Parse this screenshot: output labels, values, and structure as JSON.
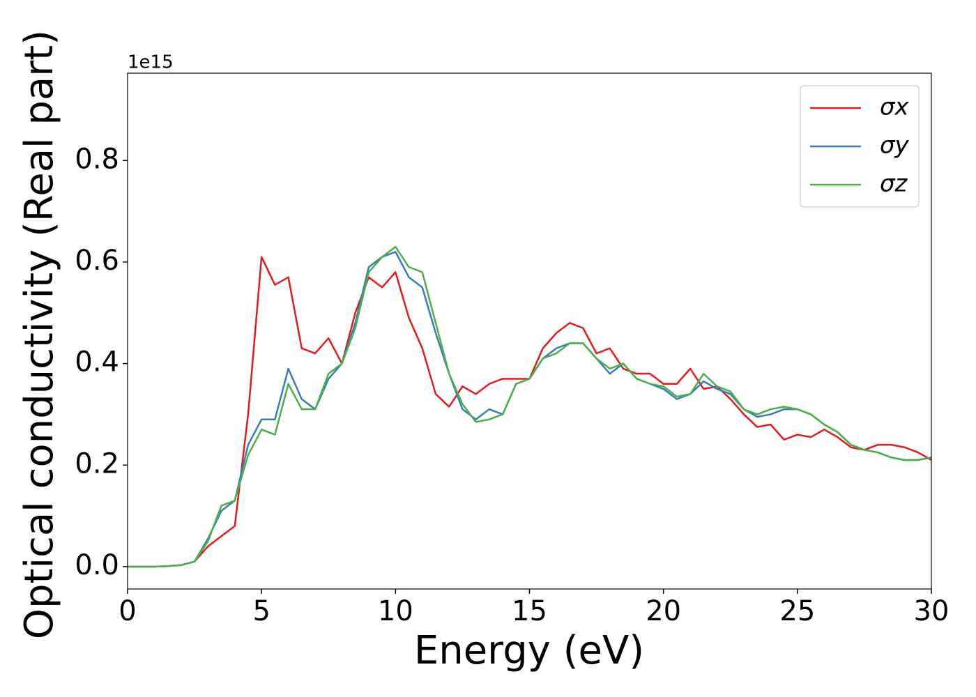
{
  "chart_data": {
    "type": "line",
    "xlabel": "Energy (eV)",
    "ylabel": "Optical conductivity (Real part)",
    "offset_label": "1e15",
    "x": [
      0,
      0.5,
      1,
      1.5,
      2,
      2.5,
      3,
      3.5,
      4,
      4.5,
      5,
      5.5,
      6,
      6.5,
      7,
      7.5,
      8,
      8.5,
      9,
      9.5,
      10,
      10.5,
      11,
      11.5,
      12,
      12.5,
      13,
      13.5,
      14,
      14.5,
      15,
      15.5,
      16,
      16.5,
      17,
      17.5,
      18,
      18.5,
      19,
      19.5,
      20,
      20.5,
      21,
      21.5,
      22,
      22.5,
      23,
      23.5,
      24,
      24.5,
      25,
      25.5,
      26,
      26.5,
      27,
      27.5,
      28,
      28.5,
      29,
      29.5,
      30
    ],
    "series": [
      {
        "name": "σx",
        "color": "#e41a1c",
        "values": [
          0,
          0,
          0,
          0.001,
          0.003,
          0.01,
          0.04,
          0.06,
          0.08,
          0.3,
          0.61,
          0.555,
          0.57,
          0.43,
          0.42,
          0.45,
          0.4,
          0.5,
          0.57,
          0.55,
          0.58,
          0.49,
          0.43,
          0.34,
          0.315,
          0.355,
          0.34,
          0.36,
          0.37,
          0.37,
          0.37,
          0.43,
          0.46,
          0.48,
          0.47,
          0.42,
          0.43,
          0.39,
          0.38,
          0.38,
          0.36,
          0.36,
          0.39,
          0.35,
          0.355,
          0.33,
          0.3,
          0.275,
          0.28,
          0.25,
          0.26,
          0.255,
          0.27,
          0.255,
          0.235,
          0.23,
          0.24,
          0.24,
          0.235,
          0.225,
          0.21
        ]
      },
      {
        "name": "σy",
        "color": "#377eb8",
        "values": [
          0,
          0,
          0,
          0.001,
          0.003,
          0.01,
          0.055,
          0.11,
          0.13,
          0.24,
          0.29,
          0.29,
          0.39,
          0.33,
          0.31,
          0.37,
          0.4,
          0.48,
          0.59,
          0.61,
          0.62,
          0.57,
          0.55,
          0.46,
          0.38,
          0.31,
          0.29,
          0.31,
          0.3,
          0.36,
          0.37,
          0.41,
          0.43,
          0.44,
          0.44,
          0.41,
          0.38,
          0.4,
          0.37,
          0.36,
          0.35,
          0.33,
          0.34,
          0.365,
          0.35,
          0.34,
          0.31,
          0.295,
          0.3,
          0.31,
          0.31,
          0.3,
          0.28,
          0.265,
          0.24,
          0.23,
          0.225,
          0.215,
          0.21,
          0.21,
          0.215
        ]
      },
      {
        "name": "σz",
        "color": "#4daf4a",
        "values": [
          0,
          0,
          0,
          0.001,
          0.003,
          0.01,
          0.05,
          0.12,
          0.13,
          0.22,
          0.27,
          0.26,
          0.36,
          0.31,
          0.31,
          0.38,
          0.4,
          0.47,
          0.58,
          0.61,
          0.63,
          0.59,
          0.58,
          0.48,
          0.38,
          0.32,
          0.285,
          0.29,
          0.3,
          0.36,
          0.37,
          0.41,
          0.42,
          0.44,
          0.44,
          0.41,
          0.39,
          0.4,
          0.37,
          0.36,
          0.355,
          0.335,
          0.34,
          0.38,
          0.355,
          0.345,
          0.31,
          0.3,
          0.31,
          0.315,
          0.31,
          0.3,
          0.28,
          0.265,
          0.24,
          0.23,
          0.225,
          0.215,
          0.21,
          0.21,
          0.215
        ]
      }
    ],
    "xlim": [
      0,
      30
    ],
    "ylim": [
      -0.044,
      0.972
    ],
    "xticks": [
      0,
      5,
      10,
      15,
      20,
      25,
      30
    ],
    "yticks": [
      {
        "value": 0,
        "label": "0.0"
      },
      0.2,
      0.4,
      0.6,
      0.8
    ],
    "grid": false,
    "legend": "upper right"
  }
}
